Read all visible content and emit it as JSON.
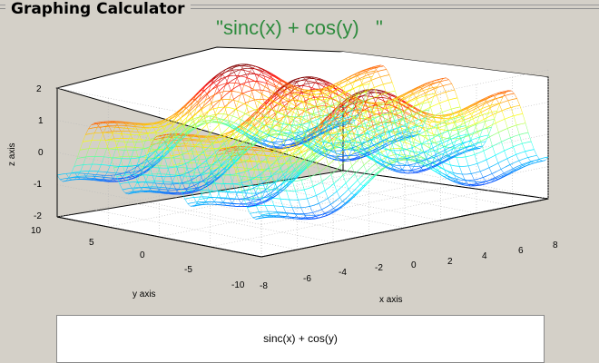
{
  "panel": {
    "title": "Graphing Calculator"
  },
  "plot": {
    "title": "\"sinc(x) + cos(y)   \"",
    "xlabel": "x axis",
    "ylabel": "y axis",
    "zlabel": "z axis",
    "x_ticks": [
      "-8",
      "-6",
      "-4",
      "-2",
      "0",
      "2",
      "4",
      "6",
      "8"
    ],
    "y_ticks": [
      "10",
      "5",
      "0",
      "-5",
      "-10"
    ],
    "z_ticks": [
      "2",
      "1",
      "0",
      "-1",
      "-2"
    ]
  },
  "chart_data": {
    "type": "surface",
    "function": "sinc(x) + cos(y)",
    "xlim": [
      -8,
      8
    ],
    "ylim": [
      -10,
      10
    ],
    "zlim": [
      -2,
      2
    ],
    "grid": true,
    "colormap": "jet",
    "mesh": true
  },
  "expression_box": {
    "value": "sinc(x) + cos(y)"
  }
}
